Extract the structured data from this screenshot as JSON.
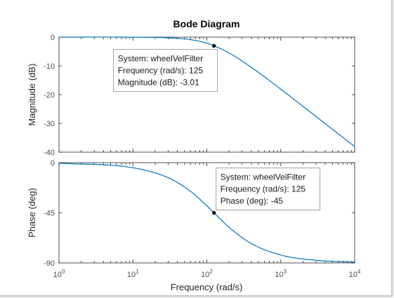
{
  "chart_data": {
    "type": "line",
    "title": "Bode Diagram",
    "xlabel": "Frequency  (rad/s)",
    "x_scale": "log",
    "xlim": [
      1,
      10000
    ],
    "x_ticks": [
      {
        "base": "10",
        "exp": "0",
        "value": 1
      },
      {
        "base": "10",
        "exp": "1",
        "value": 10
      },
      {
        "base": "10",
        "exp": "2",
        "value": 100
      },
      {
        "base": "10",
        "exp": "3",
        "value": 1000
      },
      {
        "base": "10",
        "exp": "4",
        "value": 10000
      }
    ],
    "series_color": "#0072bd",
    "grid": false,
    "panels": [
      {
        "name": "magnitude",
        "ylabel": "Magnitude (dB)",
        "ylim": [
          -40,
          0
        ],
        "y_ticks": [
          0,
          -10,
          -20,
          -30,
          -40
        ],
        "points": [
          [
            1,
            -0.0003
          ],
          [
            10,
            -0.028
          ],
          [
            30,
            -0.24
          ],
          [
            60,
            -0.87
          ],
          [
            100,
            -2.07
          ],
          [
            125,
            -3.01
          ],
          [
            200,
            -5.48
          ],
          [
            400,
            -10.5
          ],
          [
            1000,
            -18.1
          ],
          [
            3000,
            -27.6
          ],
          [
            10000,
            -38.06
          ]
        ],
        "datatip": {
          "x": 125,
          "y": -3.01,
          "lines": [
            "System: wheelVelFilter",
            "Frequency (rad/s): 125",
            "Magnitude (dB): -3.01"
          ]
        }
      },
      {
        "name": "phase",
        "ylabel": "Phase (deg)",
        "ylim": [
          -90,
          0
        ],
        "y_ticks": [
          0,
          -45,
          -90
        ],
        "points": [
          [
            1,
            -0.46
          ],
          [
            10,
            -4.57
          ],
          [
            30,
            -13.5
          ],
          [
            60,
            -25.6
          ],
          [
            100,
            -38.7
          ],
          [
            125,
            -45
          ],
          [
            200,
            -58
          ],
          [
            400,
            -72.6
          ],
          [
            1000,
            -82.9
          ],
          [
            3000,
            -87.6
          ],
          [
            10000,
            -89.3
          ]
        ],
        "datatip": {
          "x": 125,
          "y": -45,
          "lines": [
            "System: wheelVelFilter",
            "Frequency (rad/s): 125",
            "Phase (deg): -45"
          ]
        }
      }
    ]
  }
}
